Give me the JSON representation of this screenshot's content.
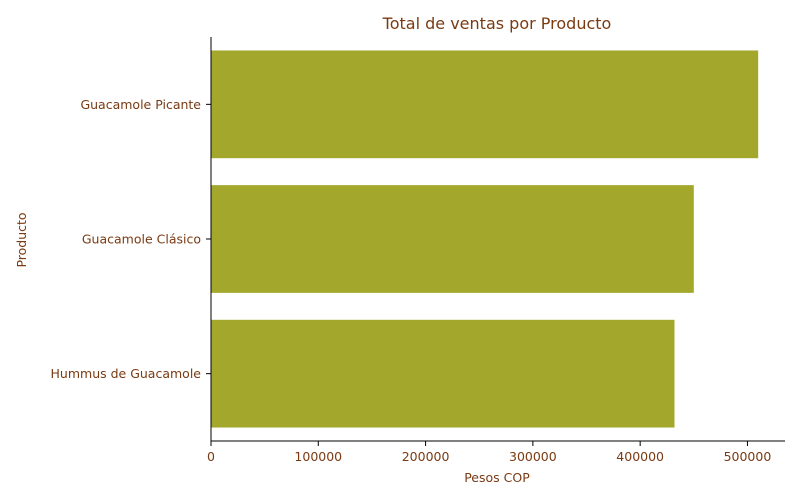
{
  "chart_data": {
    "type": "bar",
    "orientation": "horizontal",
    "title": "Total de ventas por Producto",
    "xlabel": "Pesos COP",
    "ylabel": "Producto",
    "categories": [
      "Guacamole Picante",
      "Guacamole Clásico",
      "Hummus de Guacamole"
    ],
    "values": [
      510000,
      450000,
      432000
    ],
    "xlim": [
      0,
      535000
    ],
    "xticks": [
      0,
      100000,
      200000,
      300000,
      400000,
      500000
    ],
    "xtick_labels": [
      "0",
      "100000",
      "200000",
      "300000",
      "400000",
      "500000"
    ],
    "bar_color": "#a3a82d",
    "text_color": "#7a3a12",
    "grid": false
  }
}
